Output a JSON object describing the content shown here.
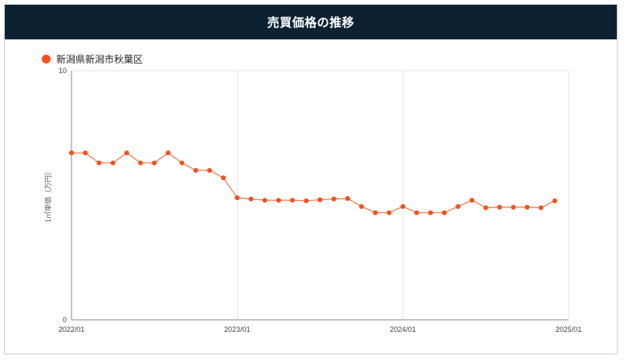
{
  "header": {
    "title": "売買価格の推移"
  },
  "colors": {
    "header_bg": "#0c2233",
    "series": "#f4511e"
  },
  "chart_data": {
    "type": "line",
    "title": "売買価格の推移",
    "ylabel": "1㎡単価（万円）",
    "ylim": [
      0,
      10
    ],
    "y_ticks": [
      "0",
      "10"
    ],
    "x_ticks": [
      "2022/01",
      "2023/01",
      "2024/01",
      "2025/01"
    ],
    "grid": true,
    "legend_position": "top-left",
    "series": [
      {
        "name": "新潟県新潟市秋葉区",
        "color": "#f4511e",
        "x": [
          "2022/01",
          "2022/02",
          "2022/03",
          "2022/04",
          "2022/05",
          "2022/06",
          "2022/07",
          "2022/08",
          "2022/09",
          "2022/10",
          "2022/11",
          "2022/12",
          "2023/01",
          "2023/02",
          "2023/03",
          "2023/04",
          "2023/05",
          "2023/06",
          "2023/07",
          "2023/08",
          "2023/09",
          "2023/10",
          "2023/11",
          "2023/12",
          "2024/01",
          "2024/02",
          "2024/03",
          "2024/04",
          "2024/05",
          "2024/06",
          "2024/07",
          "2024/08",
          "2024/09",
          "2024/10",
          "2024/11",
          "2024/12"
        ],
        "values": [
          6.7,
          6.7,
          6.3,
          6.3,
          6.7,
          6.3,
          6.3,
          6.7,
          6.3,
          6.0,
          6.0,
          5.7,
          4.9,
          4.85,
          4.8,
          4.8,
          4.8,
          4.78,
          4.82,
          4.85,
          4.87,
          4.55,
          4.3,
          4.3,
          4.55,
          4.3,
          4.3,
          4.3,
          4.55,
          4.8,
          4.5,
          4.52,
          4.52,
          4.52,
          4.5,
          4.78
        ]
      }
    ]
  }
}
